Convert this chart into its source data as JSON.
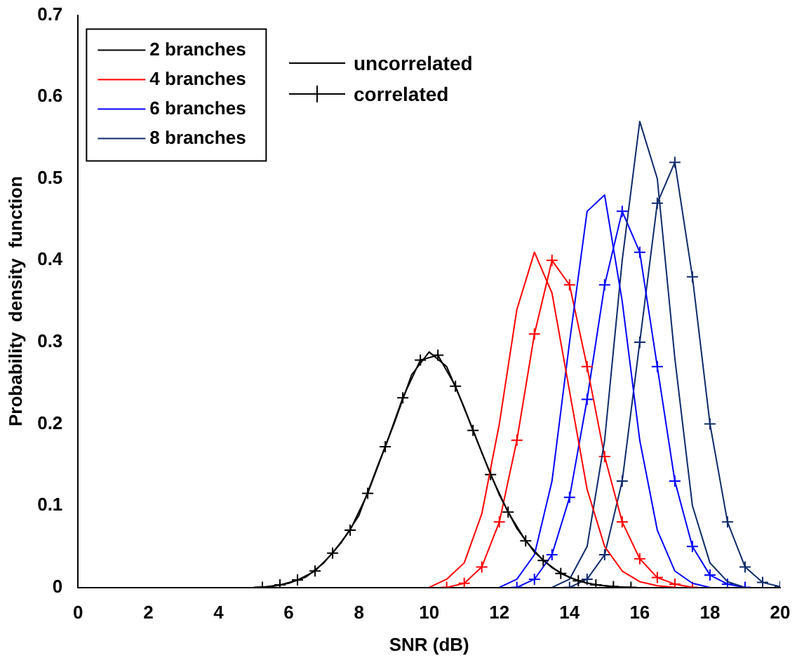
{
  "chart_data": {
    "type": "line",
    "xlabel": "SNR (dB)",
    "ylabel": "Probability  density  function",
    "xlim": [
      0,
      20
    ],
    "xticks": [
      0,
      2,
      4,
      6,
      8,
      10,
      12,
      14,
      16,
      18,
      20
    ],
    "ylim": [
      0,
      0.7
    ],
    "yticks": [
      0,
      0.1,
      0.2,
      0.3,
      0.4,
      0.5,
      0.6,
      0.7
    ],
    "grid": false,
    "legend": "top left",
    "marker": "none",
    "line_style": "solid",
    "annotations": [
      "uncorrelated",
      "correlated"
    ],
    "series": [
      {
        "name": "2 branches",
        "color": "#000000",
        "x": [
          5,
          5.5,
          6,
          6.5,
          7,
          7.5,
          8,
          8.5,
          9,
          9.5,
          10,
          10.5,
          11,
          11.5,
          12,
          12.5,
          13,
          13.5,
          14,
          14.5,
          15,
          15.5
        ],
        "values": [
          0,
          0.001,
          0.005,
          0.013,
          0.03,
          0.055,
          0.088,
          0.145,
          0.2,
          0.26,
          0.288,
          0.27,
          0.22,
          0.165,
          0.113,
          0.072,
          0.043,
          0.024,
          0.012,
          0.005,
          0.002,
          0
        ]
      },
      {
        "name": "4 branches",
        "color": "#ff0000",
        "x": [
          10,
          10.5,
          11,
          11.5,
          12,
          12.5,
          13,
          13.5,
          14,
          14.5,
          15,
          15.5,
          16,
          16.5,
          17
        ],
        "values": [
          0,
          0.01,
          0.03,
          0.09,
          0.2,
          0.34,
          0.41,
          0.36,
          0.24,
          0.12,
          0.05,
          0.02,
          0.007,
          0.002,
          0
        ]
      },
      {
        "name": "6 branches",
        "color": "#0000ff",
        "x": [
          12,
          12.5,
          13,
          13.5,
          14,
          14.5,
          15,
          15.5,
          16,
          16.5,
          17,
          17.5,
          18
        ],
        "values": [
          0,
          0.01,
          0.04,
          0.13,
          0.3,
          0.46,
          0.48,
          0.35,
          0.18,
          0.07,
          0.02,
          0.005,
          0
        ]
      },
      {
        "name": "8 branches",
        "color": "#0d2a6b",
        "x": [
          13.5,
          14,
          14.5,
          15,
          15.5,
          16,
          16.5,
          17,
          17.5,
          18,
          18.5,
          19
        ],
        "values": [
          0,
          0.01,
          0.05,
          0.18,
          0.4,
          0.57,
          0.5,
          0.28,
          0.1,
          0.03,
          0.007,
          0
        ]
      },
      {
        "color": "#000000",
        "marker": "cross",
        "x": [
          5.25,
          5.75,
          6.25,
          6.75,
          7.25,
          7.75,
          8.25,
          8.75,
          9.25,
          9.75,
          10.25,
          10.75,
          11.25,
          11.75,
          12.25,
          12.75,
          13.25,
          13.75,
          14.25,
          14.75,
          15.25,
          15.75
        ],
        "values": [
          0,
          0.003,
          0.009,
          0.02,
          0.042,
          0.07,
          0.115,
          0.172,
          0.232,
          0.278,
          0.284,
          0.246,
          0.192,
          0.138,
          0.092,
          0.057,
          0.033,
          0.017,
          0.008,
          0.003,
          0.001,
          0
        ]
      },
      {
        "color": "#ff0000",
        "marker": "cross",
        "x": [
          10.5,
          11,
          11.5,
          12,
          12.5,
          13,
          13.5,
          14,
          14.5,
          15,
          15.5,
          16,
          16.5,
          17,
          17.5
        ],
        "values": [
          0,
          0.005,
          0.025,
          0.08,
          0.18,
          0.31,
          0.4,
          0.37,
          0.27,
          0.16,
          0.08,
          0.035,
          0.012,
          0.004,
          0
        ]
      },
      {
        "color": "#0000ff",
        "marker": "cross",
        "x": [
          12.5,
          13,
          13.5,
          14,
          14.5,
          15,
          15.5,
          16,
          16.5,
          17,
          17.5,
          18,
          18.5,
          19
        ],
        "values": [
          0,
          0.01,
          0.04,
          0.11,
          0.23,
          0.37,
          0.46,
          0.41,
          0.27,
          0.13,
          0.05,
          0.015,
          0.004,
          0
        ]
      },
      {
        "color": "#0d2a6b",
        "marker": "cross",
        "x": [
          14,
          14.5,
          15,
          15.5,
          16,
          16.5,
          17,
          17.5,
          18,
          18.5,
          19,
          19.5,
          20
        ],
        "values": [
          0,
          0.01,
          0.04,
          0.13,
          0.3,
          0.47,
          0.52,
          0.38,
          0.2,
          0.08,
          0.025,
          0.006,
          0.001
        ]
      }
    ]
  }
}
